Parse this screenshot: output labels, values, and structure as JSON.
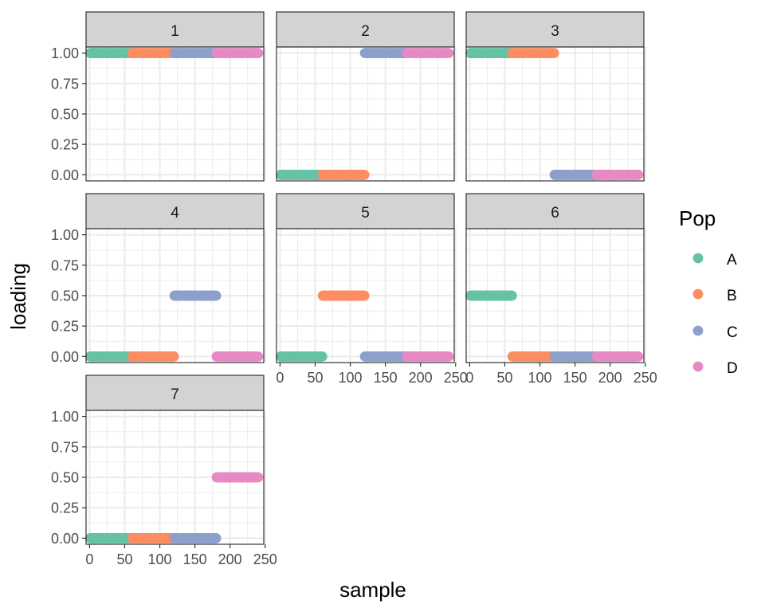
{
  "chart_data": {
    "type": "scatter",
    "xlabel": "sample",
    "ylabel": "loading",
    "xlim": [
      -5,
      248
    ],
    "ylim": [
      -0.05,
      1.05
    ],
    "x_ticks": [
      0,
      50,
      100,
      150,
      200,
      250
    ],
    "x_tick_labels": [
      "0",
      "50",
      "100",
      "150",
      "200",
      "250"
    ],
    "y_ticks": [
      0,
      0.25,
      0.5,
      0.75,
      1.0
    ],
    "y_tick_labels": [
      "0.00",
      "0.25",
      "0.50",
      "0.75",
      "1.00"
    ],
    "grid": true,
    "legend": {
      "title": "Pop",
      "placement": "right",
      "entries": [
        {
          "label": "A",
          "color": "#66C2A5"
        },
        {
          "label": "B",
          "color": "#FC8D62"
        },
        {
          "label": "C",
          "color": "#8DA0CB"
        },
        {
          "label": "D",
          "color": "#E78AC3"
        }
      ]
    },
    "groups": [
      {
        "pop": "A",
        "x_range": [
          1,
          60
        ]
      },
      {
        "pop": "B",
        "x_range": [
          61,
          120
        ]
      },
      {
        "pop": "C",
        "x_range": [
          121,
          180
        ]
      },
      {
        "pop": "D",
        "x_range": [
          181,
          240
        ]
      }
    ],
    "facets": [
      {
        "label": "1",
        "loadings": {
          "A": 1.0,
          "B": 1.0,
          "C": 1.0,
          "D": 1.0
        }
      },
      {
        "label": "2",
        "loadings": {
          "A": 0.0,
          "B": 0.0,
          "C": 1.0,
          "D": 1.0
        }
      },
      {
        "label": "3",
        "loadings": {
          "A": 1.0,
          "B": 1.0,
          "C": 0.0,
          "D": 0.0
        }
      },
      {
        "label": "4",
        "loadings": {
          "A": 0.0,
          "B": 0.0,
          "C": 0.5,
          "D": 0.0
        }
      },
      {
        "label": "5",
        "loadings": {
          "A": 0.0,
          "B": 0.5,
          "C": 0.0,
          "D": 0.0
        }
      },
      {
        "label": "6",
        "loadings": {
          "A": 0.5,
          "B": 0.0,
          "C": 0.0,
          "D": 0.0
        }
      },
      {
        "label": "7",
        "loadings": {
          "A": 0.0,
          "B": 0.0,
          "C": 0.0,
          "D": 0.5
        }
      }
    ]
  }
}
